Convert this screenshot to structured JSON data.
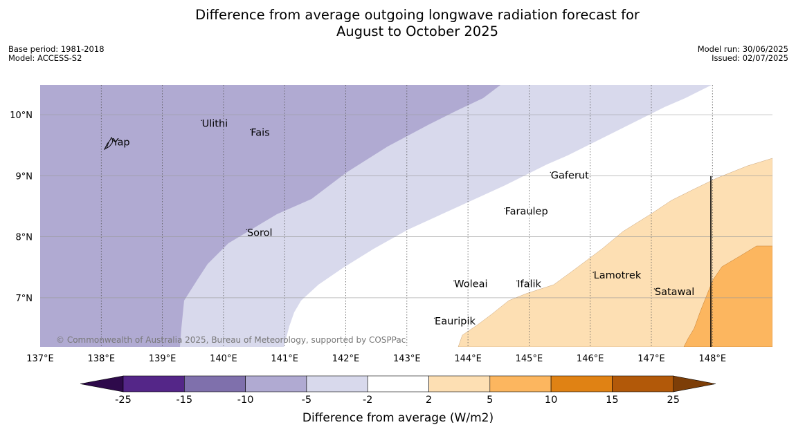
{
  "title_line1": "Difference from average outgoing longwave radiation forecast for",
  "title_line2": "August to October 2025",
  "info_left": [
    "Base period: 1981-2018",
    "Model: ACCESS-S2"
  ],
  "info_right": [
    "Model run: 30/06/2025",
    "Issued: 02/07/2025"
  ],
  "credit": "© Commonwealth of Australia 2025, Bureau of Meteorology, supported by COSPPac",
  "map": {
    "lon_range": [
      137,
      149
    ],
    "lat_range": [
      6.2,
      10.5
    ],
    "lon_ticks": [
      137,
      138,
      139,
      140,
      141,
      142,
      143,
      144,
      145,
      146,
      147,
      148
    ],
    "lon_labels": [
      "137°E",
      "138°E",
      "139°E",
      "140°E",
      "141°E",
      "142°E",
      "143°E",
      "144°E",
      "145°E",
      "146°E",
      "147°E",
      "148°E"
    ],
    "lat_ticks": [
      10,
      9,
      8,
      7
    ],
    "lat_labels": [
      "10°N",
      "9°N",
      "8°N",
      "7°N"
    ],
    "places": [
      {
        "name": "Yap",
        "lon": 138.18,
        "lat": 9.55
      },
      {
        "name": "Ulithi",
        "lon": 139.64,
        "lat": 9.86
      },
      {
        "name": "Fais",
        "lon": 140.44,
        "lat": 9.71
      },
      {
        "name": "Gaferut",
        "lon": 145.35,
        "lat": 9.01
      },
      {
        "name": "Faraulep",
        "lon": 144.6,
        "lat": 8.42
      },
      {
        "name": "Sorol",
        "lon": 140.38,
        "lat": 8.07
      },
      {
        "name": "Lamotrek",
        "lon": 146.05,
        "lat": 7.37
      },
      {
        "name": "Woleai",
        "lon": 143.77,
        "lat": 7.23
      },
      {
        "name": "Ifalik",
        "lon": 144.8,
        "lat": 7.23
      },
      {
        "name": "Satawal",
        "lon": 147.05,
        "lat": 7.1
      },
      {
        "name": "Eauripik",
        "lon": 143.45,
        "lat": 6.62
      }
    ]
  },
  "colorbar": {
    "title": "Difference from average (W/m2)",
    "labels": [
      "-25",
      "-15",
      "-10",
      "-5",
      "-2",
      "2",
      "5",
      "10",
      "15",
      "25"
    ],
    "colors": [
      "#542688",
      "#7f70ac",
      "#b0aad2",
      "#d8d9ec",
      "#ffffff",
      "#fddfb3",
      "#fcb65f",
      "#e08214",
      "#b25909"
    ],
    "low_extend": "#2e0a4b",
    "high_extend": "#7d3e08"
  }
}
